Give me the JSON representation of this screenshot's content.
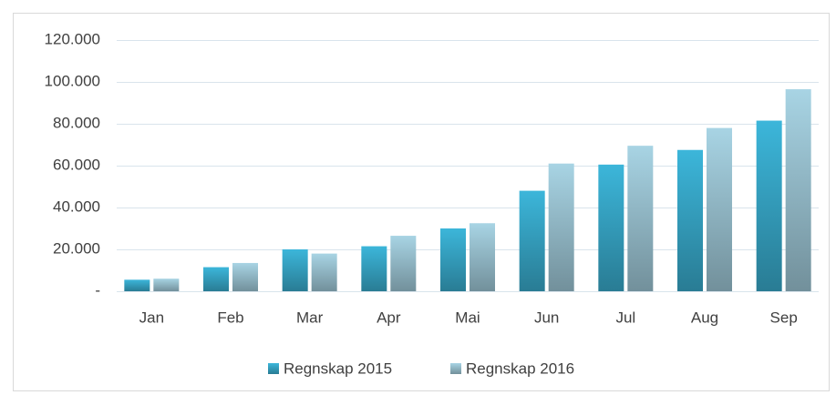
{
  "chart_data": {
    "type": "bar",
    "categories": [
      "Jan",
      "Feb",
      "Mar",
      "Apr",
      "Mai",
      "Jun",
      "Jul",
      "Aug",
      "Sep"
    ],
    "series": [
      {
        "name": "Regnskap 2015",
        "color": "#3cb6da",
        "values": [
          5500,
          11500,
          20000,
          21500,
          30000,
          48000,
          60500,
          67500,
          81500
        ]
      },
      {
        "name": "Regnskap 2016",
        "color": "#a8d4e4",
        "values": [
          6000,
          13500,
          18000,
          26500,
          32500,
          61000,
          69500,
          78000,
          96500
        ]
      }
    ],
    "ylim": [
      0,
      120000
    ],
    "yticks": [
      {
        "value": 0,
        "label": "-"
      },
      {
        "value": 20000,
        "label": "20.000"
      },
      {
        "value": 40000,
        "label": "40.000"
      },
      {
        "value": 60000,
        "label": "60.000"
      },
      {
        "value": 80000,
        "label": "80.000"
      },
      {
        "value": 100000,
        "label": "100.000"
      },
      {
        "value": 120000,
        "label": "120.000"
      }
    ],
    "grid": true,
    "legend": "bottom"
  }
}
